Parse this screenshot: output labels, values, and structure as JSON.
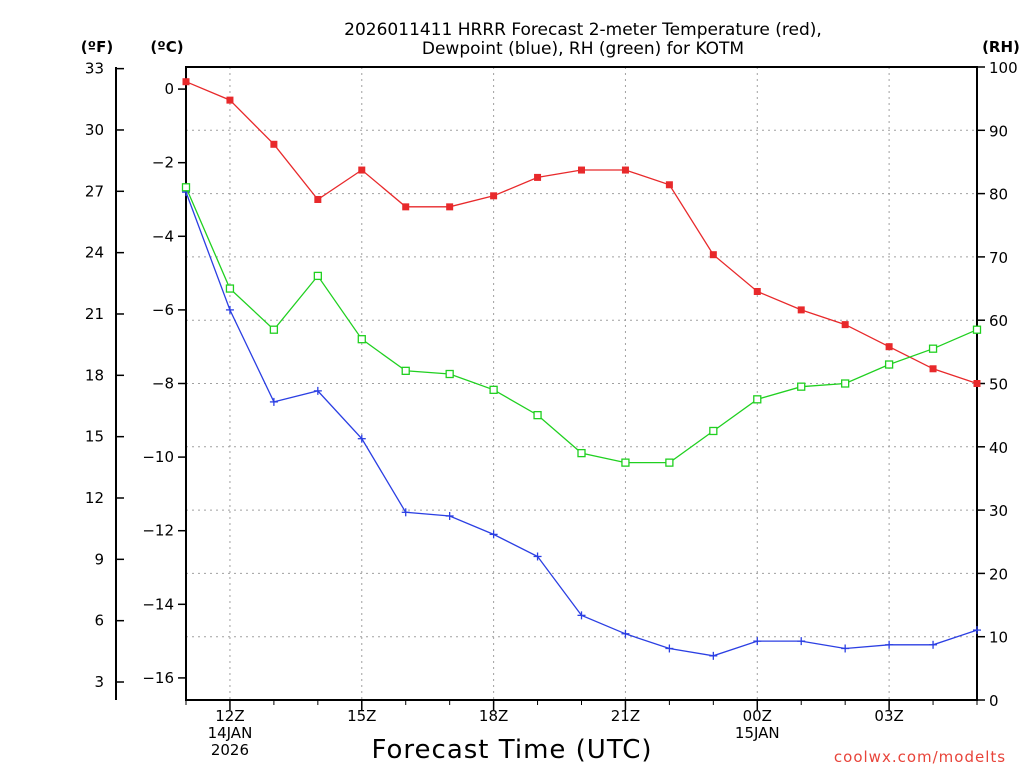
{
  "header": {
    "title_line1": "2026011411 HRRR Forecast 2-meter Temperature (red),",
    "title_line2": "Dewpoint (blue), RH (green) for KOTM",
    "unit_f": "(ºF)",
    "unit_c": "(ºC)",
    "unit_rh": "(RH)"
  },
  "footer": {
    "xlabel": "Forecast Time (UTC)",
    "credit": "coolwx.com/modelts"
  },
  "chart_data": {
    "type": "line",
    "title": "2026011411 HRRR Forecast 2-meter Temperature (red), Dewpoint (blue), RH (green) for KOTM",
    "xlabel": "Forecast Time (UTC)",
    "x_hours": [
      11,
      12,
      13,
      14,
      15,
      16,
      17,
      18,
      19,
      20,
      21,
      22,
      23,
      24,
      25,
      26,
      27,
      28,
      29
    ],
    "xlim": [
      11,
      29
    ],
    "xticks": [
      {
        "hour": 12,
        "lines": [
          "12Z",
          "14JAN",
          "2026"
        ]
      },
      {
        "hour": 15,
        "lines": [
          "15Z"
        ]
      },
      {
        "hour": 18,
        "lines": [
          "18Z"
        ]
      },
      {
        "hour": 21,
        "lines": [
          "21Z"
        ]
      },
      {
        "hour": 24,
        "lines": [
          "00Z",
          "15JAN"
        ]
      },
      {
        "hour": 27,
        "lines": [
          "03Z"
        ]
      }
    ],
    "grid_hours": [
      12,
      15,
      18,
      21,
      24,
      27
    ],
    "axis_c": {
      "label": "(ºC)",
      "range": [
        -16.6,
        0.6
      ],
      "ticks": [
        0,
        -2,
        -4,
        -6,
        -8,
        -10,
        -12,
        -14,
        -16
      ],
      "tick_labels": [
        "0",
        "−2",
        "−4",
        "−6",
        "−8",
        "−10",
        "−12",
        "−14",
        "−16"
      ]
    },
    "axis_f": {
      "label": "(ºF)",
      "ticks": [
        33,
        30,
        27,
        24,
        21,
        18,
        15,
        12,
        9,
        6,
        3
      ],
      "tick_labels": [
        "33",
        "30",
        "27",
        "24",
        "21",
        "18",
        "15",
        "12",
        "9",
        "6",
        "3"
      ]
    },
    "axis_rh": {
      "label": "(RH)",
      "range": [
        0,
        100
      ],
      "ticks": [
        100,
        90,
        80,
        70,
        60,
        50,
        40,
        30,
        20,
        10,
        0
      ],
      "tick_labels": [
        "100",
        "90",
        "80",
        "70",
        "60",
        "50",
        "40",
        "30",
        "20",
        "10",
        "0"
      ]
    },
    "series": [
      {
        "name": "Temperature",
        "unit": "C",
        "axis": "c",
        "color": "#e8292b",
        "marker": "filled-square",
        "values": [
          0.2,
          -0.3,
          -1.5,
          -3.0,
          -2.2,
          -3.2,
          -3.2,
          -2.9,
          -2.4,
          -2.2,
          -2.2,
          -2.6,
          -4.5,
          -5.5,
          -6.0,
          -6.4,
          -7.0,
          -7.6,
          -8.0
        ]
      },
      {
        "name": "Dewpoint",
        "unit": "C",
        "axis": "c",
        "color": "#2b3fe3",
        "marker": "plus",
        "values": [
          -2.8,
          -6.0,
          -8.5,
          -8.2,
          -9.5,
          -11.5,
          -11.6,
          -12.1,
          -12.7,
          -14.3,
          -14.8,
          -15.2,
          -15.4,
          -15.0,
          -15.0,
          -15.2,
          -15.1,
          -15.1,
          -14.7
        ]
      },
      {
        "name": "RH",
        "unit": "%",
        "axis": "rh",
        "color": "#20d020",
        "marker": "open-square",
        "values": [
          81,
          65,
          58.5,
          67,
          57,
          52,
          51.5,
          49,
          45,
          39,
          37.5,
          37.5,
          42.5,
          47.5,
          49.5,
          50,
          53,
          55.5,
          58.5
        ]
      }
    ]
  }
}
